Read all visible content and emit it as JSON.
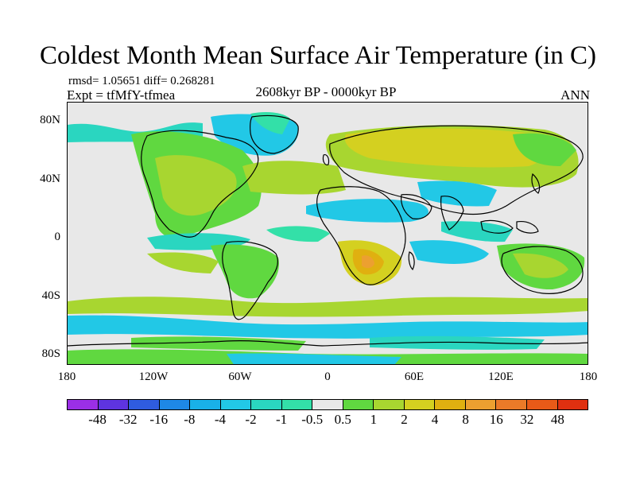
{
  "header": {
    "title": "Coldest Month Mean Surface Air Temperature (in C)",
    "stats": "rmsd= 1.05651 diff= 0.268281",
    "experiment": "Expt = tfMfY-tfmea",
    "period": "2608kyr BP - 0000kyr BP",
    "season": "ANN"
  },
  "map": {
    "projection": "cylindrical equidistant",
    "x_tick_labels": [
      "180",
      "120W",
      "60W",
      "0",
      "60E",
      "120E",
      "180"
    ],
    "y_tick_labels": [
      "80N",
      "40N",
      "0",
      "40S",
      "80S"
    ],
    "background_color": "#e8e8e8"
  },
  "colorbar": {
    "labels": [
      "-48",
      "-32",
      "-16",
      "-8",
      "-4",
      "-2",
      "-1",
      "-0.5",
      "0.5",
      "1",
      "2",
      "4",
      "8",
      "16",
      "32",
      "48"
    ],
    "colors": [
      "#9b2fe6",
      "#5e34e0",
      "#2f5ce0",
      "#1e88e6",
      "#19b1e8",
      "#22c8e6",
      "#2ad6c0",
      "#33e0a8",
      "#e8e8e8",
      "#60d840",
      "#a8d630",
      "#d4d020",
      "#e0b010",
      "#eca030",
      "#ea7a28",
      "#e85a18",
      "#e03010"
    ]
  }
}
